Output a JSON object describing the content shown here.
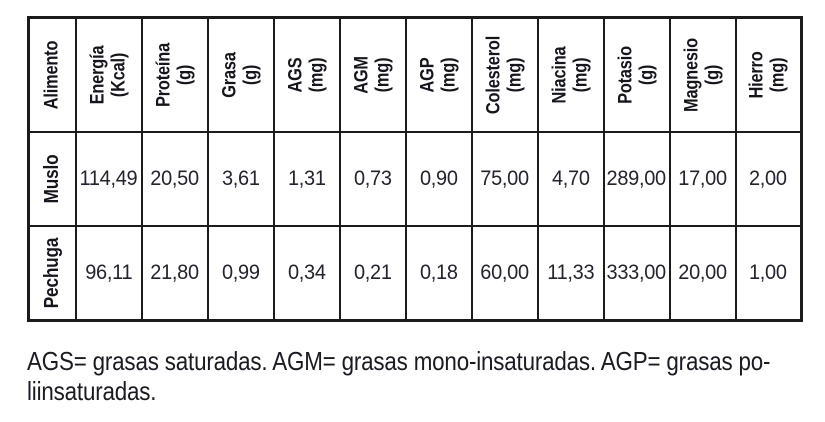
{
  "table": {
    "columns": [
      {
        "label": "Alimento",
        "unit": ""
      },
      {
        "label": "Energía",
        "unit": "(Kcal)"
      },
      {
        "label": "Proteína",
        "unit": "(g)"
      },
      {
        "label": "Grasa",
        "unit": "(g)"
      },
      {
        "label": "AGS",
        "unit": "(mg)"
      },
      {
        "label": "AGM",
        "unit": "(mg)"
      },
      {
        "label": "AGP",
        "unit": "(mg)"
      },
      {
        "label": "Colesterol",
        "unit": "(mg)"
      },
      {
        "label": "Niacina",
        "unit": "(mg)"
      },
      {
        "label": "Potasio",
        "unit": "(g)"
      },
      {
        "label": "Magnesio",
        "unit": "(g)"
      },
      {
        "label": "Hierro",
        "unit": "(mg)"
      }
    ],
    "rows": [
      {
        "name": "Muslo",
        "values": [
          "114,49",
          "20,50",
          "3,61",
          "1,31",
          "0,73",
          "0,90",
          "75,00",
          "4,70",
          "289,00",
          "17,00",
          "2,00"
        ]
      },
      {
        "name": "Pechuga",
        "values": [
          "96,11",
          "21,80",
          "0,99",
          "0,34",
          "0,21",
          "0,18",
          "60,00",
          "11,33",
          "333,00",
          "20,00",
          "1,00"
        ]
      }
    ]
  },
  "footnote": {
    "line1": "AGS= grasas saturadas. AGM= grasas mono-insaturadas. AGP= grasas po-",
    "line2": "liinsaturadas."
  },
  "colors": {
    "background": "#ffffff",
    "border": "#1b1b1b",
    "header_text": "#15151d",
    "value_text": "#23232f"
  }
}
